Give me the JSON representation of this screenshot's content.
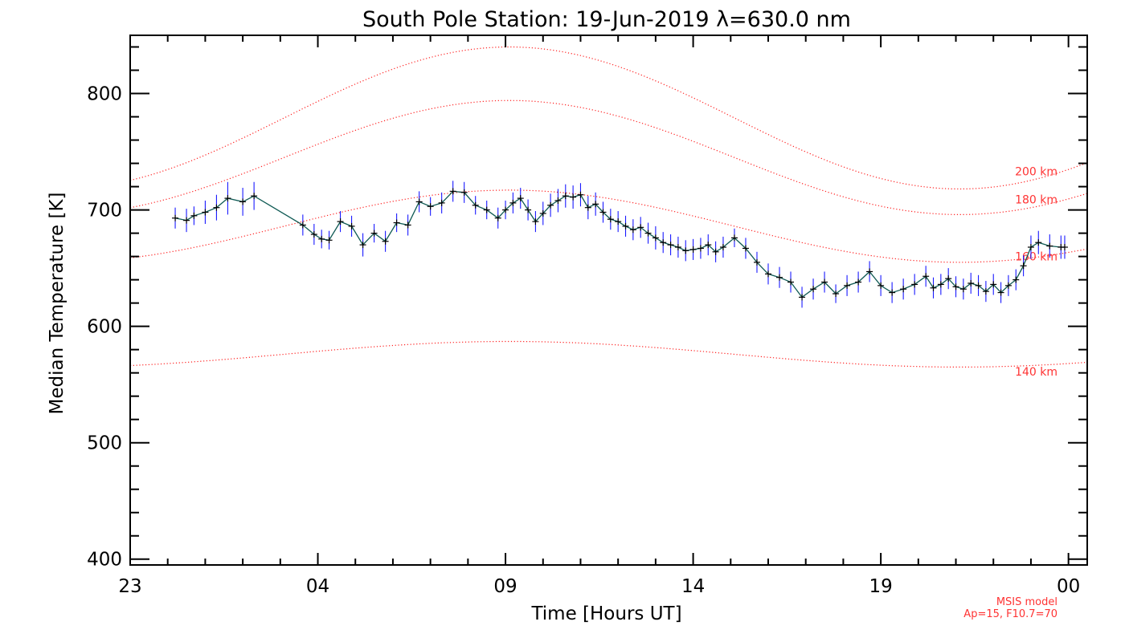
{
  "colors": {
    "model": "#ff2020",
    "errorbar": "#1a1aff",
    "line": "#0f5a54",
    "marker": "#000000",
    "axis": "#000000"
  },
  "chart_data": {
    "type": "line",
    "title": "South Pole Station: 19-Jun-2019 λ=630.0 nm",
    "xlabel": "Time [Hours UT]",
    "ylabel": "Median Temperature [K]",
    "xlim": [
      23,
      48.5
    ],
    "ylim": [
      395,
      850
    ],
    "x_ticks": [
      {
        "value": 23,
        "label": "23"
      },
      {
        "value": 28,
        "label": "04"
      },
      {
        "value": 33,
        "label": "09"
      },
      {
        "value": 38,
        "label": "14"
      },
      {
        "value": 43,
        "label": "19"
      },
      {
        "value": 48,
        "label": "00"
      }
    ],
    "y_ticks": [
      {
        "value": 400,
        "label": "400"
      },
      {
        "value": 500,
        "label": "500"
      },
      {
        "value": 600,
        "label": "600"
      },
      {
        "value": 700,
        "label": "700"
      },
      {
        "value": 800,
        "label": "800"
      }
    ],
    "model_curves": [
      {
        "name": "200 km",
        "label": "200 km",
        "mean": 779,
        "amp": 61,
        "peak_hour": 33.1,
        "label_y": 733
      },
      {
        "name": "180 km",
        "label": "180 km",
        "mean": 745,
        "amp": 49,
        "peak_hour": 33.1,
        "label_y": 709
      },
      {
        "name": "160 km",
        "label": "160 km",
        "mean": 686,
        "amp": 31,
        "peak_hour": 33.1,
        "label_y": 660
      },
      {
        "name": "140 km",
        "label": "140 km",
        "mean": 576,
        "amp": 11,
        "peak_hour": 33.1,
        "label_y": 561
      }
    ],
    "model_note": [
      "MSIS model",
      "Ap=15, F10.7=70"
    ],
    "series": [
      {
        "name": "Median Temperature",
        "x": [
          24.2,
          24.5,
          24.7,
          25.0,
          25.3,
          25.6,
          26.0,
          26.3,
          27.6,
          27.9,
          28.1,
          28.3,
          28.6,
          28.9,
          29.2,
          29.5,
          29.8,
          30.1,
          30.4,
          30.7,
          31.0,
          31.3,
          31.6,
          31.9,
          32.2,
          32.5,
          32.8,
          33.0,
          33.2,
          33.4,
          33.6,
          33.8,
          34.0,
          34.2,
          34.4,
          34.6,
          34.8,
          35.0,
          35.2,
          35.4,
          35.6,
          35.8,
          36.0,
          36.2,
          36.4,
          36.6,
          36.8,
          37.0,
          37.2,
          37.4,
          37.6,
          37.8,
          38.0,
          38.2,
          38.4,
          38.6,
          38.8,
          39.1,
          39.4,
          39.7,
          40.0,
          40.3,
          40.6,
          40.9,
          41.2,
          41.5,
          41.8,
          42.1,
          42.4,
          42.7,
          43.0,
          43.3,
          43.6,
          43.9,
          44.2,
          44.4,
          44.6,
          44.8,
          45.0,
          45.2,
          45.4,
          45.6,
          45.8,
          46.0,
          46.2,
          46.4,
          46.6,
          46.8,
          47.0,
          47.2,
          47.5,
          47.8,
          47.9
        ],
        "values": [
          693,
          691,
          695,
          698,
          702,
          710,
          707,
          712,
          687,
          679,
          675,
          674,
          690,
          686,
          670,
          680,
          673,
          689,
          687,
          707,
          703,
          706,
          716,
          715,
          704,
          700,
          693,
          700,
          706,
          710,
          700,
          690,
          697,
          704,
          708,
          712,
          711,
          713,
          702,
          705,
          698,
          692,
          690,
          686,
          683,
          685,
          680,
          676,
          672,
          670,
          668,
          665,
          666,
          667,
          670,
          664,
          668,
          676,
          667,
          655,
          645,
          642,
          638,
          625,
          632,
          638,
          628,
          635,
          638,
          647,
          635,
          629,
          632,
          636,
          643,
          633,
          636,
          641,
          634,
          632,
          637,
          635,
          630,
          636,
          629,
          635,
          640,
          652,
          668,
          672,
          669,
          668,
          668
        ],
        "errors": [
          9,
          10,
          8,
          10,
          11,
          14,
          12,
          12,
          9,
          9,
          8,
          8,
          9,
          9,
          10,
          8,
          9,
          8,
          9,
          9,
          8,
          9,
          9,
          9,
          8,
          8,
          9,
          8,
          9,
          9,
          9,
          9,
          10,
          10,
          10,
          10,
          10,
          10,
          10,
          10,
          9,
          9,
          9,
          9,
          9,
          9,
          9,
          10,
          9,
          9,
          9,
          9,
          9,
          9,
          9,
          9,
          9,
          8,
          9,
          9,
          9,
          9,
          9,
          9,
          9,
          9,
          8,
          9,
          9,
          9,
          9,
          9,
          9,
          9,
          9,
          9,
          9,
          9,
          9,
          9,
          9,
          9,
          9,
          9,
          9,
          9,
          9,
          9,
          10,
          10,
          10,
          10,
          10
        ]
      }
    ]
  }
}
